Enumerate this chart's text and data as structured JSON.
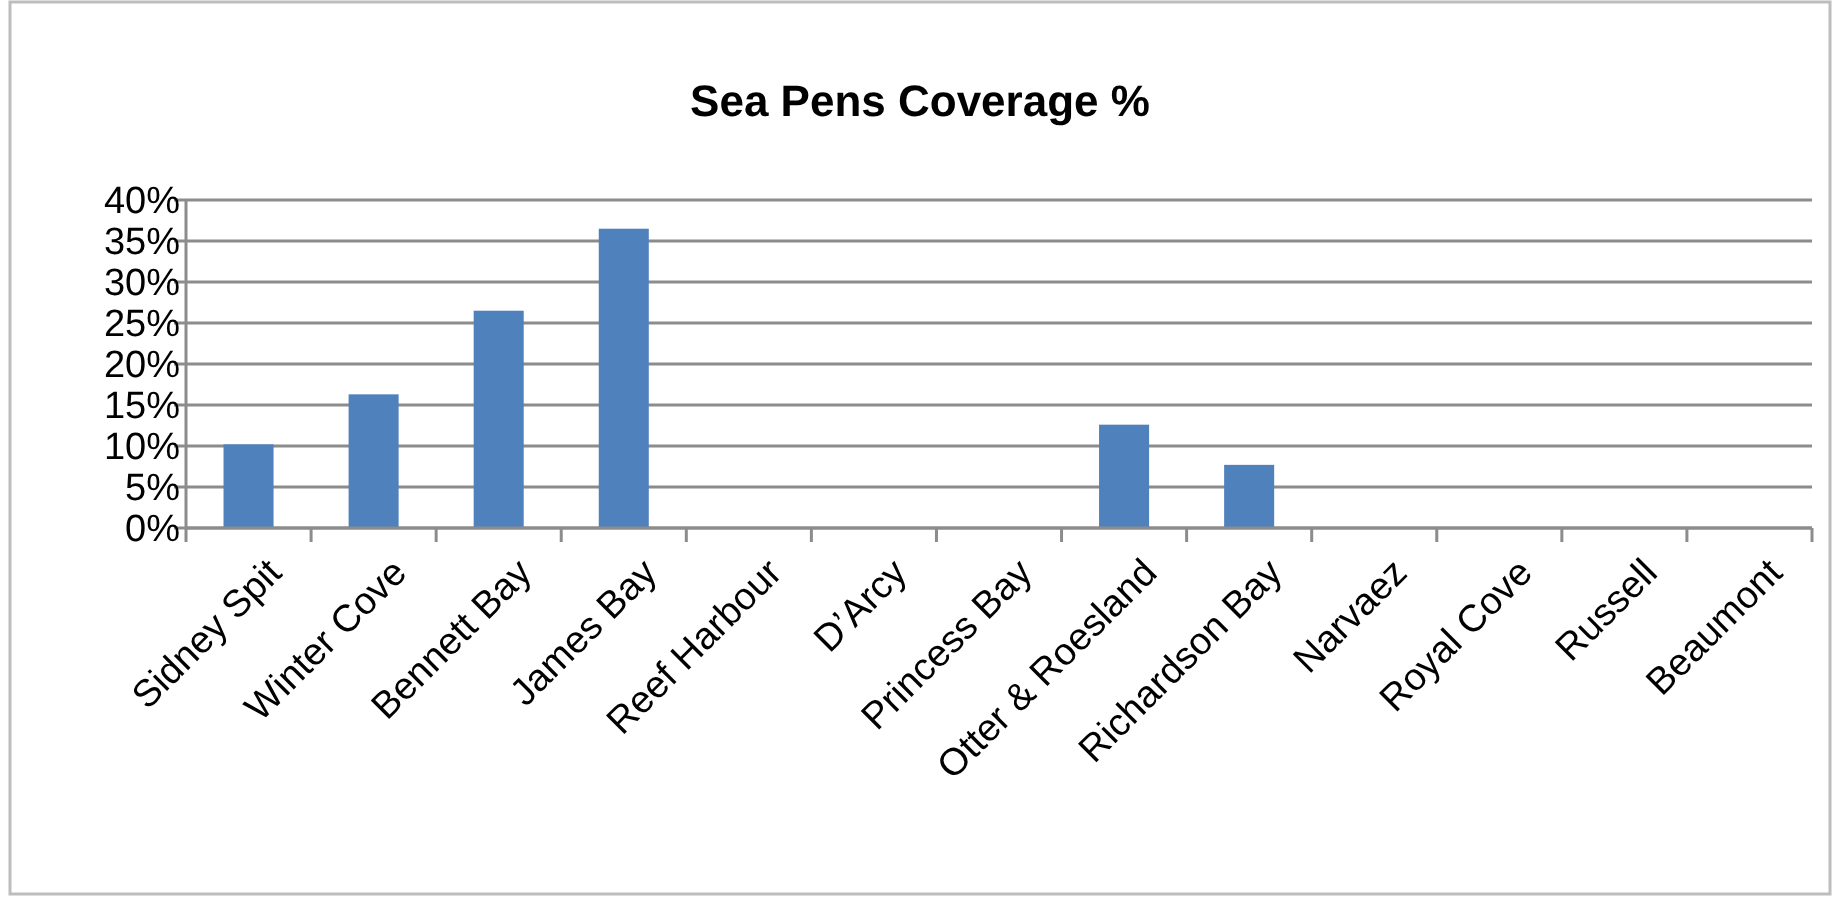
{
  "chart_data": {
    "type": "bar",
    "title": "Sea Pens Coverage %",
    "categories": [
      "Sidney Spit",
      "Winter Cove",
      "Bennett Bay",
      "James Bay",
      "Reef Harbour",
      "D’Arcy",
      "Princess Bay",
      "Otter & Roesland",
      "Richardson Bay",
      "Narvaez",
      "Royal Cove",
      "Russell",
      "Beaumont"
    ],
    "values": [
      10.2,
      16.3,
      26.5,
      36.5,
      0,
      0,
      0,
      12.6,
      7.7,
      0,
      0,
      0,
      0
    ],
    "color": "#4f81bd",
    "ylim": [
      0,
      40
    ],
    "yticks": [
      {
        "value": 0,
        "label": "0%"
      },
      {
        "value": 5,
        "label": "5%"
      },
      {
        "value": 10,
        "label": "10%"
      },
      {
        "value": 15,
        "label": "15%"
      },
      {
        "value": 20,
        "label": "20%"
      },
      {
        "value": 25,
        "label": "25%"
      },
      {
        "value": 30,
        "label": "30%"
      },
      {
        "value": 35,
        "label": "35%"
      },
      {
        "value": 40,
        "label": "40%"
      }
    ],
    "grid": "y"
  }
}
